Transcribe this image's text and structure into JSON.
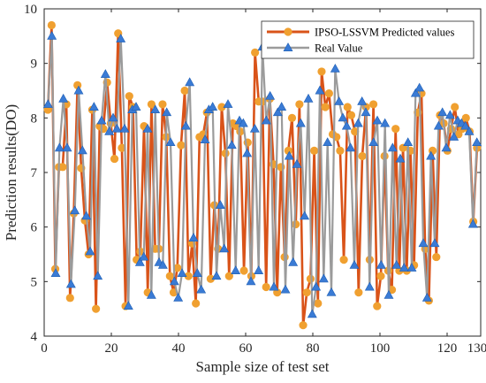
{
  "chart_data": {
    "type": "line",
    "xlabel": "Sample size of test set",
    "ylabel": "Prediction results(DO)",
    "xlim": [
      0,
      130
    ],
    "ylim": [
      4,
      10
    ],
    "xticks": [
      "0",
      "20",
      "40",
      "60",
      "80",
      "100",
      "120"
    ],
    "xtick_values": [
      0,
      20,
      40,
      60,
      80,
      100,
      120
    ],
    "xtick_extra": {
      "label": "130",
      "value": 130
    },
    "yticks": [
      "4",
      "5",
      "6",
      "7",
      "8",
      "9",
      "10"
    ],
    "ytick_values": [
      4,
      5,
      6,
      7,
      8,
      9,
      10
    ],
    "grid": false,
    "legend_position": "top-right",
    "series": [
      {
        "name": "IPSO-LSSVM Predicted values",
        "color": "#d95319",
        "marker_color": "#f0a030",
        "marker": "circle",
        "values": [
          8.15,
          9.7,
          5.23,
          7.1,
          7.1,
          8.25,
          4.7,
          6.25,
          8.6,
          7.08,
          6.12,
          5.5,
          8.15,
          4.5,
          7.85,
          7.8,
          8.65,
          7.9,
          7.25,
          9.55,
          7.45,
          4.55,
          8.4,
          8.2,
          5.4,
          5.55,
          7.85,
          4.8,
          8.25,
          5.6,
          5.6,
          8.25,
          7.65,
          5.1,
          4.8,
          5.25,
          7.5,
          8.5,
          5.1,
          5.7,
          4.6,
          7.65,
          7.7,
          8.1,
          5.05,
          6.4,
          5.6,
          8.2,
          7.35,
          5.1,
          7.9,
          7.85,
          7.75,
          5.2,
          7.55,
          5.1,
          9.2,
          8.3,
          8.3,
          4.9,
          8.35,
          7.15,
          4.8,
          7.1,
          5.45,
          7.4,
          8.0,
          6.05,
          8.25,
          4.2,
          4.8,
          5.05,
          7.4,
          4.6,
          8.85,
          8.2,
          8.45,
          7.7,
          7.65,
          7.4,
          5.4,
          8.2,
          8.05,
          7.75,
          4.8,
          7.3,
          8.2,
          5.4,
          8.25,
          4.55,
          5.1,
          7.3,
          5.2,
          4.85,
          7.8,
          5.2,
          7.45,
          5.2,
          7.4,
          5.3,
          8.1,
          8.45,
          5.6,
          4.65,
          7.4,
          5.45,
          8.05,
          7.9,
          7.4,
          7.8,
          8.2,
          7.7,
          7.8,
          8.0,
          7.75,
          6.1,
          7.45
        ]
      },
      {
        "name": "Real Value",
        "color": "#9b9b9b",
        "marker_color": "#3a7bd5",
        "marker": "triangle",
        "values": [
          8.25,
          9.5,
          5.15,
          7.45,
          8.35,
          7.45,
          4.95,
          6.3,
          8.5,
          7.4,
          6.2,
          5.55,
          8.2,
          5.1,
          7.95,
          8.8,
          7.75,
          8.0,
          7.8,
          9.45,
          7.8,
          4.55,
          8.15,
          8.2,
          5.35,
          5.45,
          7.8,
          4.75,
          8.15,
          5.35,
          5.3,
          8.1,
          7.55,
          5.0,
          4.7,
          5.15,
          7.85,
          8.65,
          5.8,
          5.15,
          4.85,
          7.6,
          8.15,
          8.2,
          5.1,
          6.4,
          5.6,
          8.25,
          7.5,
          5.2,
          7.95,
          7.9,
          7.35,
          5.0,
          7.8,
          5.2,
          9.3,
          7.95,
          8.4,
          4.9,
          8.1,
          8.2,
          4.85,
          7.3,
          5.35,
          7.15,
          7.9,
          6.2,
          8.35,
          4.4,
          4.9,
          8.5,
          5.05,
          7.55,
          4.8,
          8.9,
          8.3,
          8.0,
          7.85,
          7.45,
          5.3,
          7.9,
          8.3,
          8.1,
          4.9,
          7.55,
          7.95,
          5.3,
          7.9,
          4.75,
          7.45,
          5.3,
          7.25,
          5.25,
          7.55,
          5.25,
          8.45,
          8.55,
          5.7,
          4.7,
          7.3,
          5.7,
          7.85,
          8.1,
          7.45,
          8.05,
          7.65,
          7.95,
          7.9,
          7.85,
          7.75,
          6.05,
          7.55
        ]
      }
    ]
  }
}
